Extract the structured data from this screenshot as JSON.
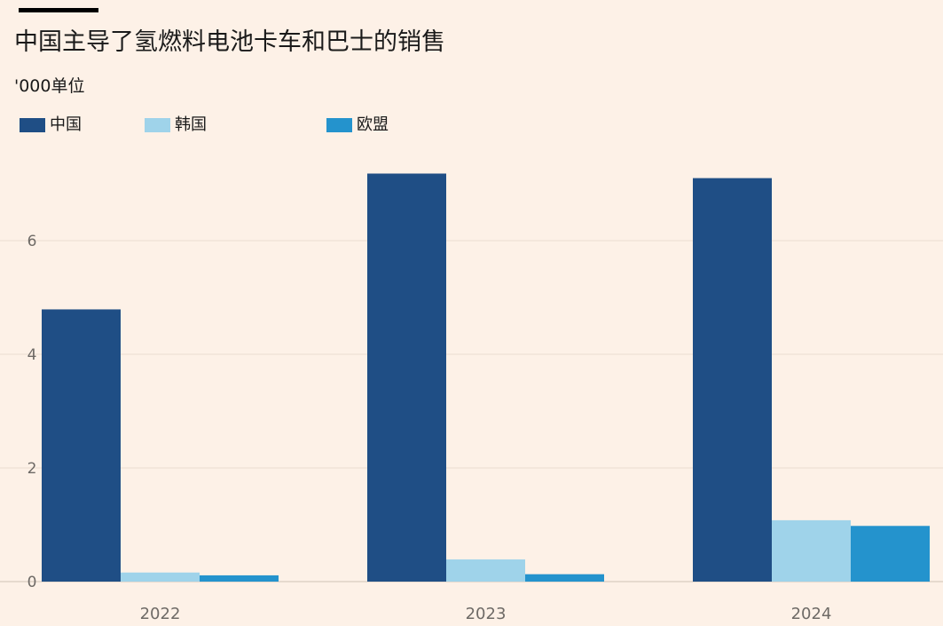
{
  "chart_data": {
    "type": "bar",
    "title": "中国主导了氢燃料电池卡车和巴士的销售",
    "subtitle": "'000单位",
    "categories": [
      "2022",
      "2023",
      "2024"
    ],
    "series": [
      {
        "name": "中国",
        "color": "#1f4e85",
        "values": [
          4.79,
          7.18,
          7.1
        ]
      },
      {
        "name": "韩国",
        "color": "#9fd3ea",
        "values": [
          0.16,
          0.39,
          1.08
        ]
      },
      {
        "name": "欧盟",
        "color": "#2493cd",
        "values": [
          0.11,
          0.13,
          0.98
        ]
      }
    ],
    "ylim": [
      0,
      7.6
    ],
    "yticks": [
      "0",
      "2",
      "4",
      "6"
    ],
    "grid": true,
    "legend_position": "top-left"
  },
  "colors": {
    "background": "#fdf1e7",
    "text": "#1a1a1a",
    "axis_text": "#6e6a66",
    "grid": "#ecddd1",
    "baseline": "#cfc2b6",
    "title_rule": "#000000"
  }
}
